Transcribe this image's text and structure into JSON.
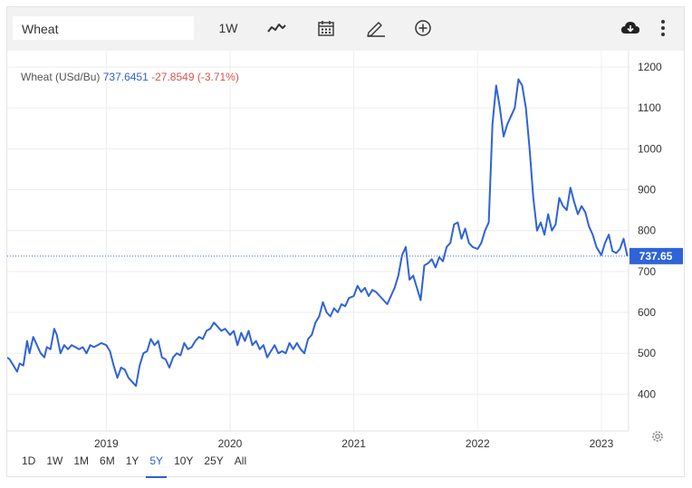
{
  "toolbar": {
    "symbol_value": "Wheat",
    "interval_label": "1W"
  },
  "legend": {
    "name": "Wheat (USd/Bu)",
    "price": "737.6451",
    "change": "-27.8549 (-3.71%)"
  },
  "ranges": [
    {
      "label": "1D",
      "active": false
    },
    {
      "label": "1W",
      "active": false
    },
    {
      "label": "1M",
      "active": false
    },
    {
      "label": "6M",
      "active": false
    },
    {
      "label": "1Y",
      "active": false
    },
    {
      "label": "5Y",
      "active": true
    },
    {
      "label": "10Y",
      "active": false
    },
    {
      "label": "25Y",
      "active": false
    },
    {
      "label": "All",
      "active": false
    }
  ],
  "icons": {
    "chart_type": "line-chart-icon",
    "calendar": "calendar-icon",
    "draw": "pencil-icon",
    "add": "plus-circle-icon",
    "download": "cloud-download-icon",
    "menu": "more-vertical-icon",
    "settings": "gear-icon"
  },
  "colors": {
    "line": "#2f63d8",
    "price_tag": "#2f63d8",
    "change": "#d9534f",
    "grid": "#eeeeee"
  },
  "chart_data": {
    "type": "line",
    "title": "",
    "xlabel": "",
    "ylabel": "",
    "x_ticks": [
      "2019",
      "2020",
      "2021",
      "2022",
      "2023"
    ],
    "y_ticks": [
      400,
      500,
      600,
      700,
      800,
      900,
      1000,
      1100,
      1200
    ],
    "ylim": [
      310,
      1240
    ],
    "xlim": [
      2018.2,
      2023.22
    ],
    "last_value_label": "737.65",
    "last_value": 737.65,
    "grid": true,
    "series": [
      {
        "values": [
          [
            2018.2,
            490
          ],
          [
            2018.22,
            485
          ],
          [
            2018.25,
            470
          ],
          [
            2018.28,
            455
          ],
          [
            2018.3,
            475
          ],
          [
            2018.33,
            470
          ],
          [
            2018.36,
            530
          ],
          [
            2018.38,
            500
          ],
          [
            2018.41,
            540
          ],
          [
            2018.44,
            520
          ],
          [
            2018.47,
            500
          ],
          [
            2018.5,
            490
          ],
          [
            2018.52,
            515
          ],
          [
            2018.55,
            510
          ],
          [
            2018.58,
            560
          ],
          [
            2018.6,
            545
          ],
          [
            2018.63,
            500
          ],
          [
            2018.66,
            520
          ],
          [
            2018.69,
            510
          ],
          [
            2018.72,
            520
          ],
          [
            2018.75,
            515
          ],
          [
            2018.78,
            510
          ],
          [
            2018.81,
            515
          ],
          [
            2018.84,
            500
          ],
          [
            2018.87,
            520
          ],
          [
            2018.9,
            515
          ],
          [
            2018.93,
            520
          ],
          [
            2018.96,
            525
          ],
          [
            2019.0,
            520
          ],
          [
            2019.03,
            505
          ],
          [
            2019.06,
            470
          ],
          [
            2019.09,
            440
          ],
          [
            2019.12,
            465
          ],
          [
            2019.15,
            460
          ],
          [
            2019.18,
            440
          ],
          [
            2019.21,
            430
          ],
          [
            2019.24,
            420
          ],
          [
            2019.27,
            470
          ],
          [
            2019.3,
            500
          ],
          [
            2019.33,
            505
          ],
          [
            2019.36,
            535
          ],
          [
            2019.39,
            520
          ],
          [
            2019.42,
            530
          ],
          [
            2019.45,
            490
          ],
          [
            2019.48,
            485
          ],
          [
            2019.51,
            465
          ],
          [
            2019.54,
            490
          ],
          [
            2019.57,
            500
          ],
          [
            2019.6,
            495
          ],
          [
            2019.63,
            525
          ],
          [
            2019.66,
            510
          ],
          [
            2019.69,
            515
          ],
          [
            2019.72,
            530
          ],
          [
            2019.75,
            540
          ],
          [
            2019.78,
            535
          ],
          [
            2019.81,
            555
          ],
          [
            2019.84,
            560
          ],
          [
            2019.87,
            575
          ],
          [
            2019.9,
            565
          ],
          [
            2019.93,
            555
          ],
          [
            2019.96,
            560
          ],
          [
            2020.0,
            545
          ],
          [
            2020.03,
            555
          ],
          [
            2020.06,
            520
          ],
          [
            2020.09,
            550
          ],
          [
            2020.12,
            530
          ],
          [
            2020.15,
            555
          ],
          [
            2020.18,
            520
          ],
          [
            2020.21,
            530
          ],
          [
            2020.24,
            510
          ],
          [
            2020.27,
            520
          ],
          [
            2020.3,
            490
          ],
          [
            2020.33,
            505
          ],
          [
            2020.36,
            520
          ],
          [
            2020.39,
            500
          ],
          [
            2020.42,
            505
          ],
          [
            2020.45,
            500
          ],
          [
            2020.48,
            525
          ],
          [
            2020.51,
            510
          ],
          [
            2020.54,
            525
          ],
          [
            2020.57,
            510
          ],
          [
            2020.6,
            500
          ],
          [
            2020.63,
            535
          ],
          [
            2020.66,
            545
          ],
          [
            2020.69,
            575
          ],
          [
            2020.72,
            590
          ],
          [
            2020.75,
            625
          ],
          [
            2020.78,
            600
          ],
          [
            2020.81,
            590
          ],
          [
            2020.84,
            610
          ],
          [
            2020.87,
            600
          ],
          [
            2020.9,
            620
          ],
          [
            2020.93,
            615
          ],
          [
            2020.96,
            635
          ],
          [
            2021.0,
            640
          ],
          [
            2021.03,
            665
          ],
          [
            2021.06,
            650
          ],
          [
            2021.09,
            660
          ],
          [
            2021.12,
            640
          ],
          [
            2021.15,
            655
          ],
          [
            2021.18,
            650
          ],
          [
            2021.21,
            640
          ],
          [
            2021.24,
            630
          ],
          [
            2021.27,
            620
          ],
          [
            2021.3,
            640
          ],
          [
            2021.33,
            660
          ],
          [
            2021.36,
            690
          ],
          [
            2021.39,
            740
          ],
          [
            2021.42,
            760
          ],
          [
            2021.45,
            680
          ],
          [
            2021.48,
            690
          ],
          [
            2021.51,
            660
          ],
          [
            2021.54,
            630
          ],
          [
            2021.57,
            715
          ],
          [
            2021.6,
            720
          ],
          [
            2021.63,
            730
          ],
          [
            2021.66,
            710
          ],
          [
            2021.69,
            735
          ],
          [
            2021.72,
            725
          ],
          [
            2021.75,
            760
          ],
          [
            2021.78,
            770
          ],
          [
            2021.81,
            815
          ],
          [
            2021.84,
            820
          ],
          [
            2021.87,
            780
          ],
          [
            2021.9,
            805
          ],
          [
            2021.93,
            770
          ],
          [
            2021.96,
            760
          ],
          [
            2022.0,
            755
          ],
          [
            2022.03,
            770
          ],
          [
            2022.06,
            800
          ],
          [
            2022.09,
            820
          ],
          [
            2022.12,
            1060
          ],
          [
            2022.15,
            1155
          ],
          [
            2022.18,
            1100
          ],
          [
            2022.21,
            1030
          ],
          [
            2022.24,
            1060
          ],
          [
            2022.27,
            1080
          ],
          [
            2022.3,
            1100
          ],
          [
            2022.33,
            1170
          ],
          [
            2022.36,
            1155
          ],
          [
            2022.39,
            1100
          ],
          [
            2022.42,
            1000
          ],
          [
            2022.45,
            880
          ],
          [
            2022.48,
            800
          ],
          [
            2022.51,
            820
          ],
          [
            2022.54,
            790
          ],
          [
            2022.57,
            840
          ],
          [
            2022.6,
            800
          ],
          [
            2022.63,
            815
          ],
          [
            2022.66,
            880
          ],
          [
            2022.69,
            860
          ],
          [
            2022.72,
            850
          ],
          [
            2022.75,
            905
          ],
          [
            2022.78,
            870
          ],
          [
            2022.81,
            840
          ],
          [
            2022.84,
            860
          ],
          [
            2022.87,
            845
          ],
          [
            2022.9,
            810
          ],
          [
            2022.93,
            790
          ],
          [
            2022.96,
            760
          ],
          [
            2023.0,
            740
          ],
          [
            2023.03,
            770
          ],
          [
            2023.06,
            790
          ],
          [
            2023.09,
            750
          ],
          [
            2023.12,
            745
          ],
          [
            2023.15,
            755
          ],
          [
            2023.18,
            780
          ],
          [
            2023.21,
            737.65
          ]
        ]
      }
    ]
  }
}
